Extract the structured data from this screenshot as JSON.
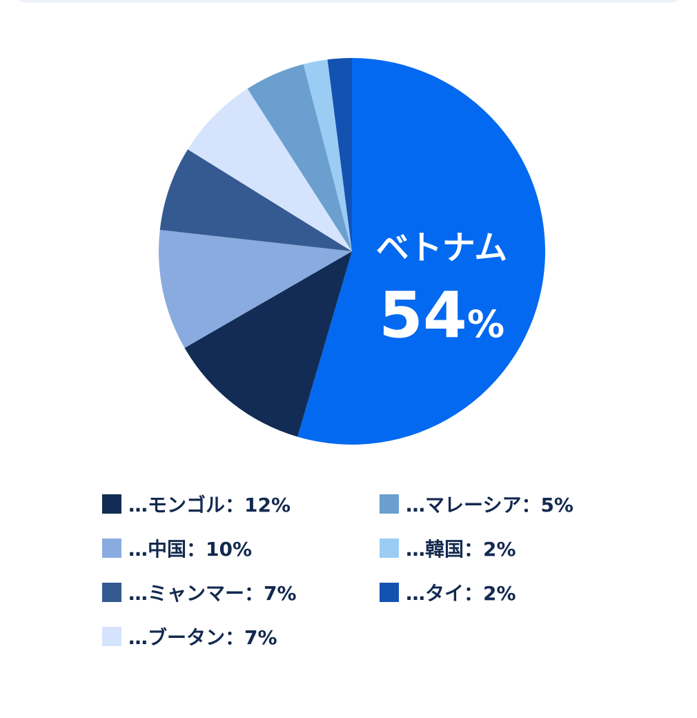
{
  "chart_data": {
    "type": "pie",
    "slices": [
      {
        "label": "ベトナム",
        "value": 54,
        "color": "#0369f0"
      },
      {
        "label": "モンゴル",
        "value": 12,
        "color": "#122c55"
      },
      {
        "label": "中国",
        "value": 10,
        "color": "#8aabdf"
      },
      {
        "label": "ミャンマー",
        "value": 7,
        "color": "#355a91"
      },
      {
        "label": "ブータン",
        "value": 7,
        "color": "#d5e4fc"
      },
      {
        "label": "マレーシア",
        "value": 5,
        "color": "#6a9fcf"
      },
      {
        "label": "韓国",
        "value": 2,
        "color": "#9bcdf4"
      },
      {
        "label": "タイ",
        "value": 2,
        "color": "#1452b2"
      }
    ],
    "highlight": {
      "name": "ベトナム",
      "value": "54",
      "unit": "%"
    },
    "legend": [
      "…モンゴル：12%",
      "…中国：10%",
      "…ミャンマー：7%",
      "…ブータン：7%",
      "…マレーシア：5%",
      "…韓国：2%",
      "…タイ：2%"
    ]
  }
}
